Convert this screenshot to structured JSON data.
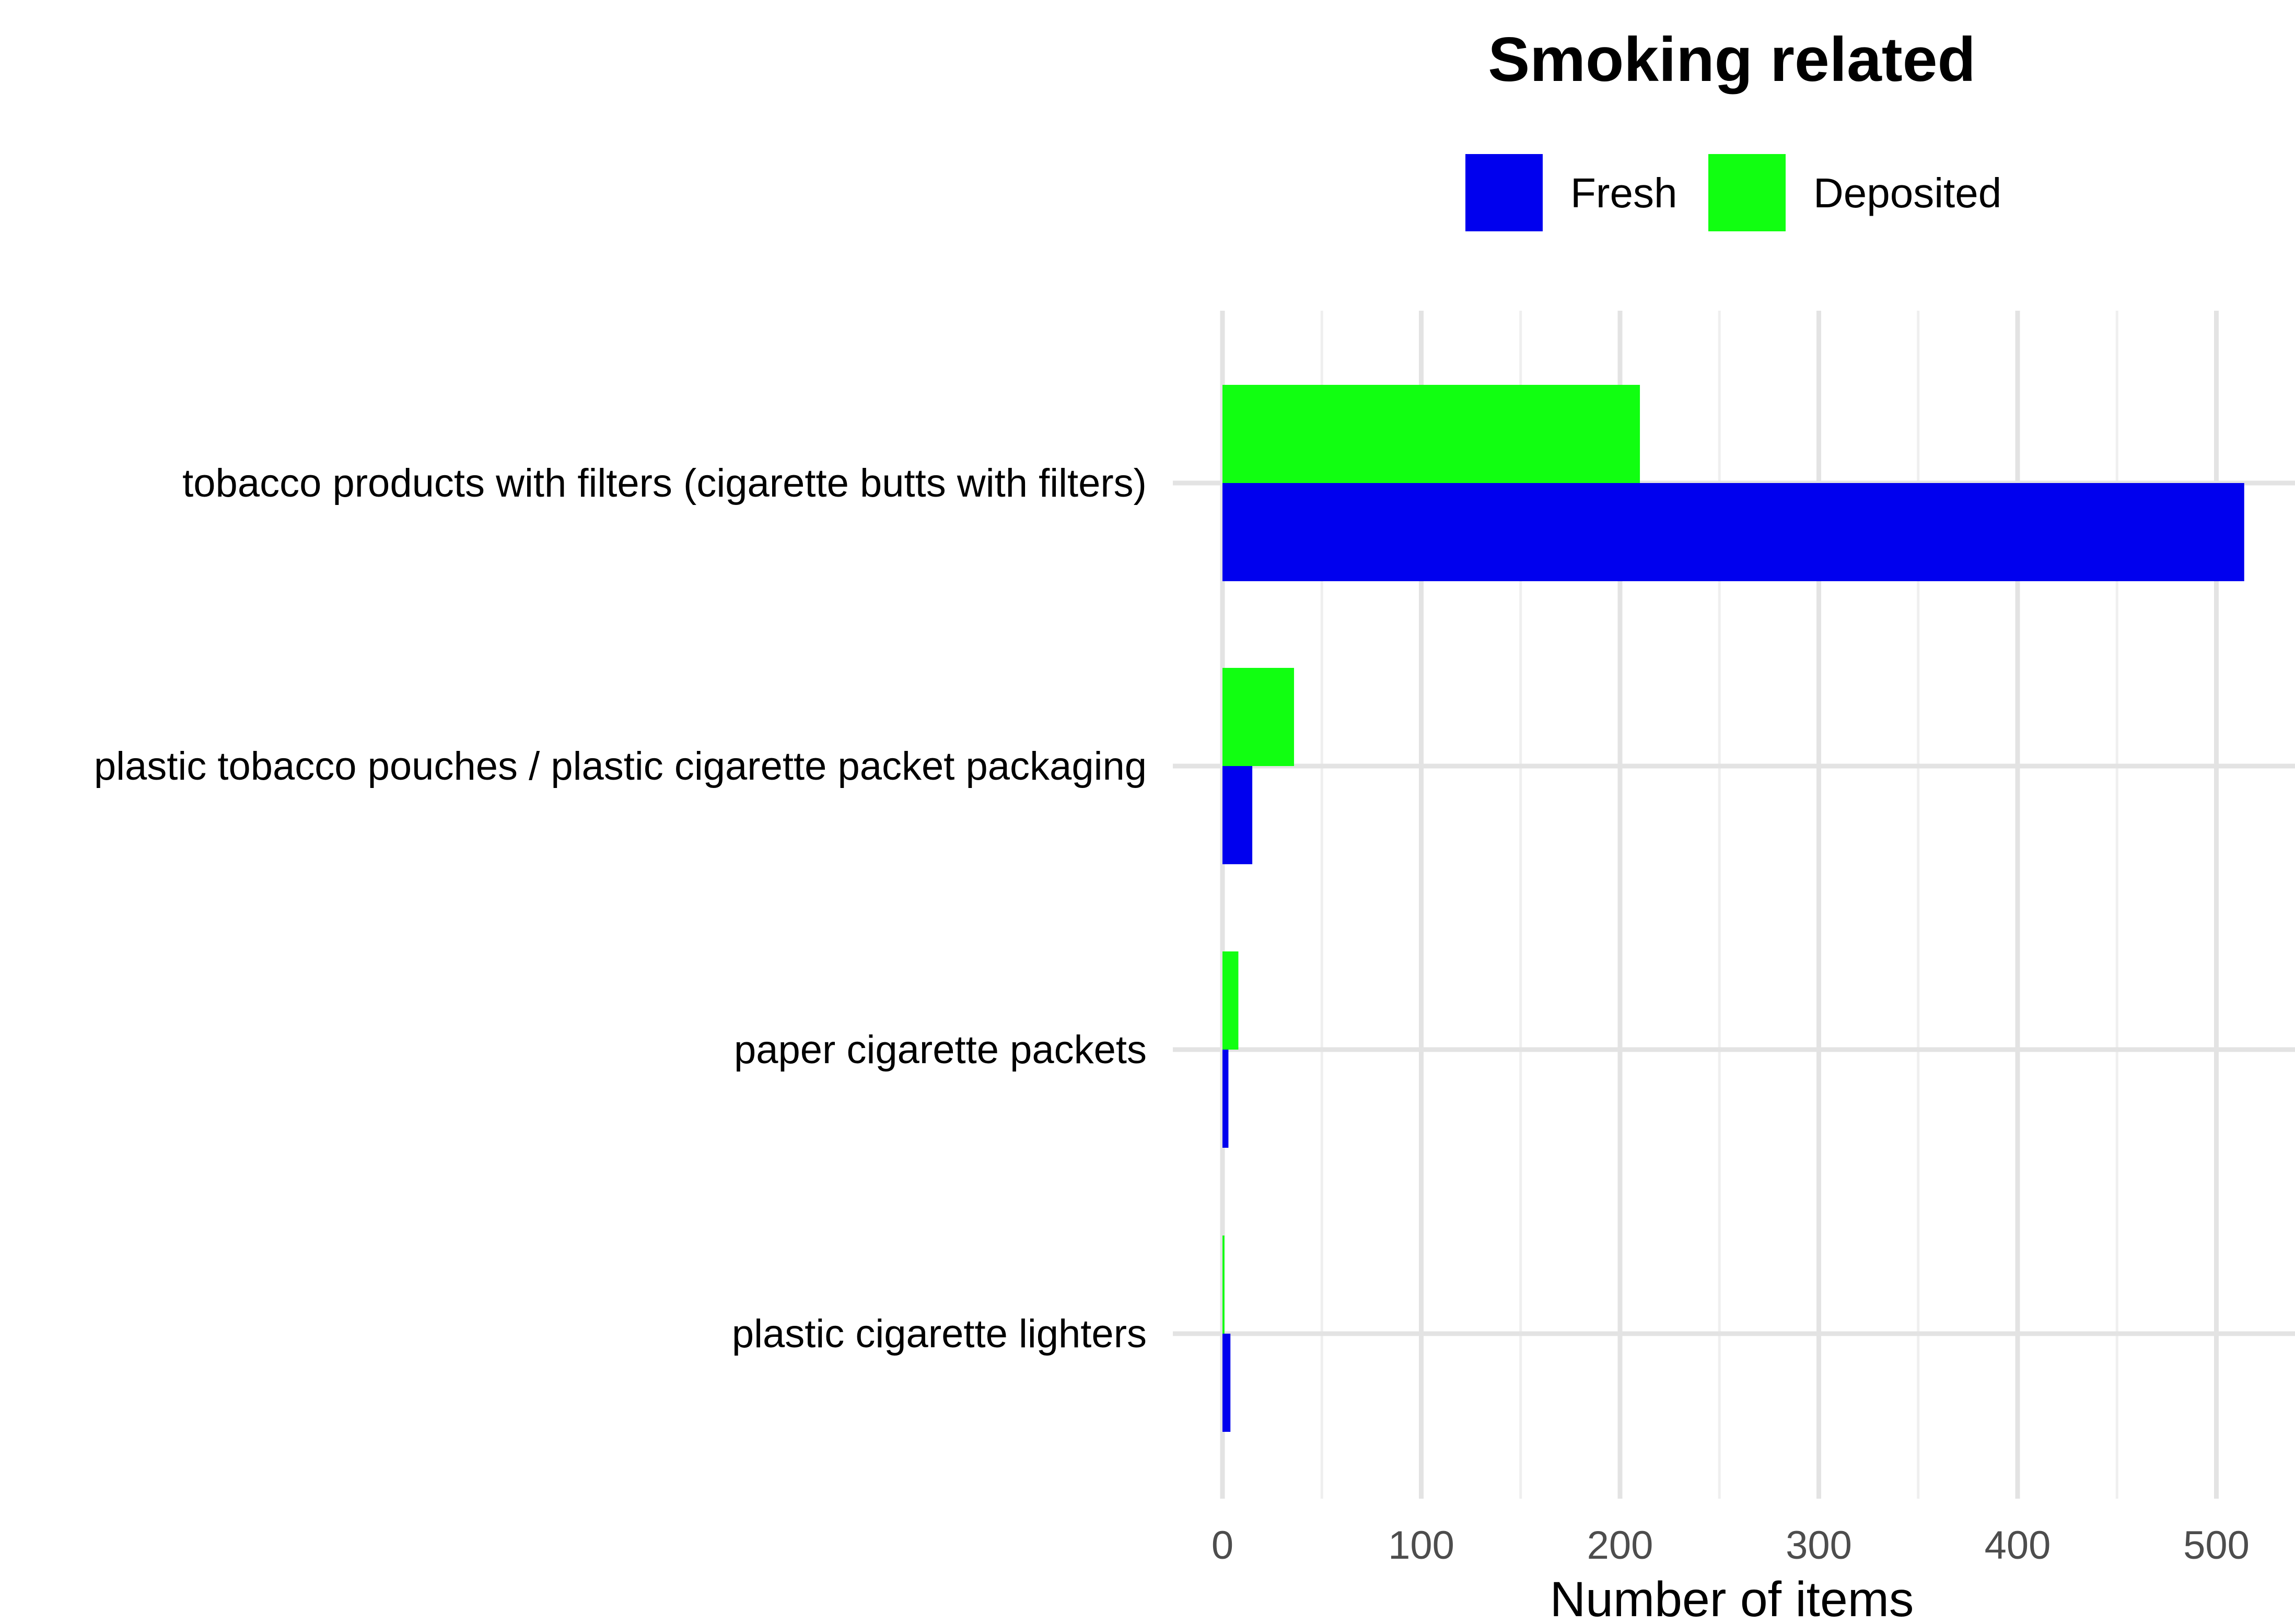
{
  "chart_data": {
    "type": "bar",
    "orientation": "horizontal",
    "title": "Smoking related",
    "xlabel": "Number of items",
    "ylabel": "",
    "categories": [
      "tobacco products with filters (cigarette butts with filters)",
      "plastic tobacco pouches / plastic cigarette packet packaging",
      "paper cigarette packets",
      "plastic cigarette lighters"
    ],
    "series": [
      {
        "name": "Fresh",
        "color": "#0000ee",
        "values": [
          514,
          15,
          3,
          4
        ]
      },
      {
        "name": "Deposited",
        "color": "#11ff11",
        "values": [
          210,
          36,
          8,
          1
        ]
      }
    ],
    "xlim": [
      0,
      540
    ],
    "x_ticks": [
      0,
      100,
      200,
      300,
      400,
      500
    ],
    "x_tick_labels": [
      "0",
      "100",
      "200",
      "300",
      "400",
      "500"
    ],
    "grid": true,
    "legend_position": "top"
  }
}
